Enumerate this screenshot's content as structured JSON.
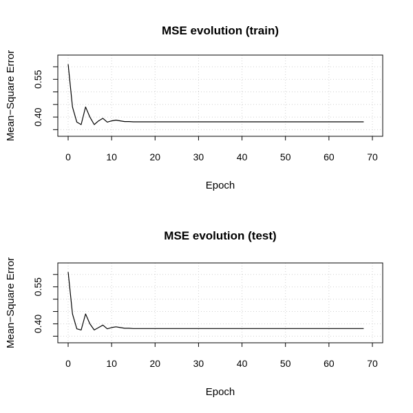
{
  "chart_data": [
    {
      "type": "line",
      "title": "MSE evolution (train)",
      "xlabel": "Epoch",
      "ylabel": "Mean−Square Error",
      "xlim": [
        0,
        70
      ],
      "ylim": [
        0.34,
        0.63
      ],
      "x_ticks": [
        "0",
        "10",
        "20",
        "30",
        "40",
        "50",
        "60",
        "70"
      ],
      "y_ticks": [
        "0.40",
        "0.55"
      ],
      "grid": true,
      "x": [
        0,
        1,
        2,
        3,
        4,
        5,
        6,
        7,
        8,
        9,
        10,
        11,
        12,
        13,
        14,
        15,
        16,
        17,
        18,
        19,
        20,
        21,
        22,
        23,
        24,
        25,
        26,
        27,
        28,
        29,
        30,
        31,
        32,
        33,
        34,
        35,
        36,
        37,
        38,
        39,
        40,
        41,
        42,
        43,
        44,
        45,
        46,
        47,
        48,
        49,
        50,
        51,
        52,
        53,
        54,
        55,
        56,
        57,
        58,
        59,
        60,
        61,
        62,
        63,
        64,
        65,
        66,
        67,
        68
      ],
      "y": [
        0.61,
        0.44,
        0.38,
        0.37,
        0.44,
        0.4,
        0.37,
        0.385,
        0.395,
        0.38,
        0.385,
        0.388,
        0.385,
        0.382,
        0.382,
        0.381,
        0.381,
        0.381,
        0.381,
        0.381,
        0.381,
        0.381,
        0.381,
        0.381,
        0.381,
        0.381,
        0.381,
        0.381,
        0.381,
        0.381,
        0.381,
        0.381,
        0.381,
        0.381,
        0.381,
        0.381,
        0.381,
        0.381,
        0.381,
        0.381,
        0.381,
        0.381,
        0.381,
        0.381,
        0.381,
        0.381,
        0.381,
        0.381,
        0.381,
        0.381,
        0.381,
        0.381,
        0.381,
        0.381,
        0.381,
        0.381,
        0.381,
        0.381,
        0.381,
        0.381,
        0.381,
        0.381,
        0.381,
        0.381,
        0.381,
        0.381,
        0.381,
        0.381,
        0.381
      ]
    },
    {
      "type": "line",
      "title": "MSE evolution (test)",
      "xlabel": "Epoch",
      "ylabel": "Mean−Square Error",
      "xlim": [
        0,
        70
      ],
      "ylim": [
        0.34,
        0.63
      ],
      "x_ticks": [
        "0",
        "10",
        "20",
        "30",
        "40",
        "50",
        "60",
        "70"
      ],
      "y_ticks": [
        "0.40",
        "0.55"
      ],
      "grid": true,
      "x": [
        0,
        1,
        2,
        3,
        4,
        5,
        6,
        7,
        8,
        9,
        10,
        11,
        12,
        13,
        14,
        15,
        16,
        17,
        18,
        19,
        20,
        21,
        22,
        23,
        24,
        25,
        26,
        27,
        28,
        29,
        30,
        31,
        32,
        33,
        34,
        35,
        36,
        37,
        38,
        39,
        40,
        41,
        42,
        43,
        44,
        45,
        46,
        47,
        48,
        49,
        50,
        51,
        52,
        53,
        54,
        55,
        56,
        57,
        58,
        59,
        60,
        61,
        62,
        63,
        64,
        65,
        66,
        67,
        68
      ],
      "y": [
        0.61,
        0.44,
        0.38,
        0.375,
        0.44,
        0.4,
        0.375,
        0.385,
        0.395,
        0.38,
        0.385,
        0.388,
        0.385,
        0.382,
        0.382,
        0.381,
        0.381,
        0.381,
        0.381,
        0.381,
        0.381,
        0.381,
        0.381,
        0.381,
        0.381,
        0.381,
        0.381,
        0.381,
        0.381,
        0.381,
        0.381,
        0.381,
        0.381,
        0.381,
        0.381,
        0.381,
        0.381,
        0.381,
        0.381,
        0.381,
        0.381,
        0.381,
        0.381,
        0.381,
        0.381,
        0.381,
        0.381,
        0.381,
        0.381,
        0.381,
        0.381,
        0.381,
        0.381,
        0.381,
        0.381,
        0.381,
        0.381,
        0.381,
        0.381,
        0.381,
        0.381,
        0.381,
        0.381,
        0.381,
        0.381,
        0.381,
        0.381,
        0.381,
        0.381
      ]
    }
  ]
}
